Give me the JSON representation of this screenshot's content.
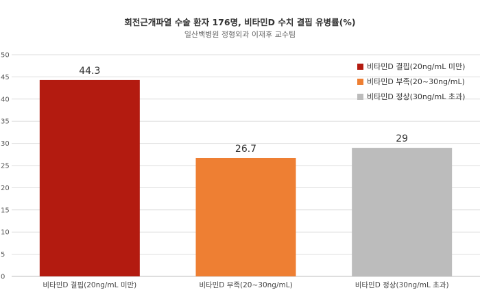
{
  "chart_data": {
    "type": "bar",
    "title": "회전근개파열 수술 환자 176명, 비타민D 수치 결핍 유병률(%)",
    "subtitle": "일산백병원 정형외과 이재후 교수팀",
    "categories": [
      "비타민D 결핍(20ng/mL 미만)",
      "비타민D 부족(20~30ng/mL)",
      "비타민D 정상(30ng/mL 초과)"
    ],
    "values": [
      44.3,
      26.7,
      29
    ],
    "value_labels": [
      "44.3",
      "26.7",
      "29"
    ],
    "colors": [
      "#b31b10",
      "#ee7f33",
      "#bcbcbc"
    ],
    "ylim": [
      0,
      50
    ],
    "yticks": [
      0,
      5,
      10,
      15,
      20,
      25,
      30,
      35,
      40,
      45,
      50
    ],
    "grid": true,
    "legend": {
      "placement": "top-right",
      "entries": [
        "비타민D 결핍(20ng/mL 미만)",
        "비타민D 부족(20~30ng/mL)",
        "비타민D 정상(30ng/mL 초과)"
      ]
    }
  }
}
